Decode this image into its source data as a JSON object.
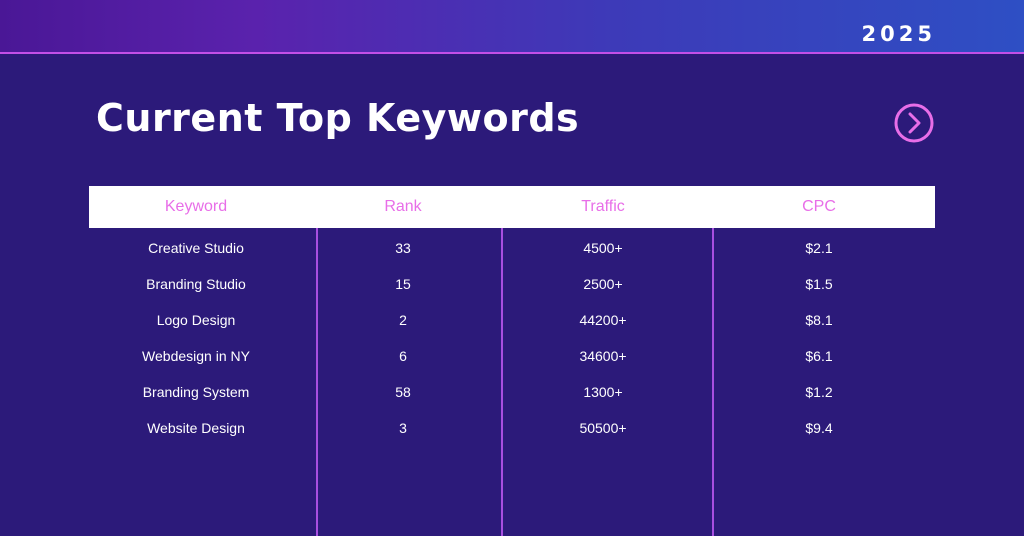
{
  "header": {
    "year": "2025"
  },
  "page": {
    "title": "Current Top Keywords"
  },
  "table": {
    "columns": [
      "Keyword",
      "Rank",
      "Traffic",
      "CPC"
    ],
    "rows": [
      [
        "Creative Studio",
        "33",
        "4500+",
        "$2.1"
      ],
      [
        "Branding Studio",
        "15",
        "2500+",
        "$1.5"
      ],
      [
        "Logo Design",
        "2",
        "44200+",
        "$8.1"
      ],
      [
        "Webdesign in NY",
        "6",
        "34600+",
        "$6.1"
      ],
      [
        "Branding System",
        "58",
        "1300+",
        "$1.2"
      ],
      [
        "Website Design",
        "3",
        "50500+",
        "$9.4"
      ]
    ]
  },
  "colors": {
    "background": "#2c1a7a",
    "accent": "#e86ee8",
    "divider": "#a84fe0"
  },
  "icons": {
    "next": "chevron-right-circle-icon"
  }
}
